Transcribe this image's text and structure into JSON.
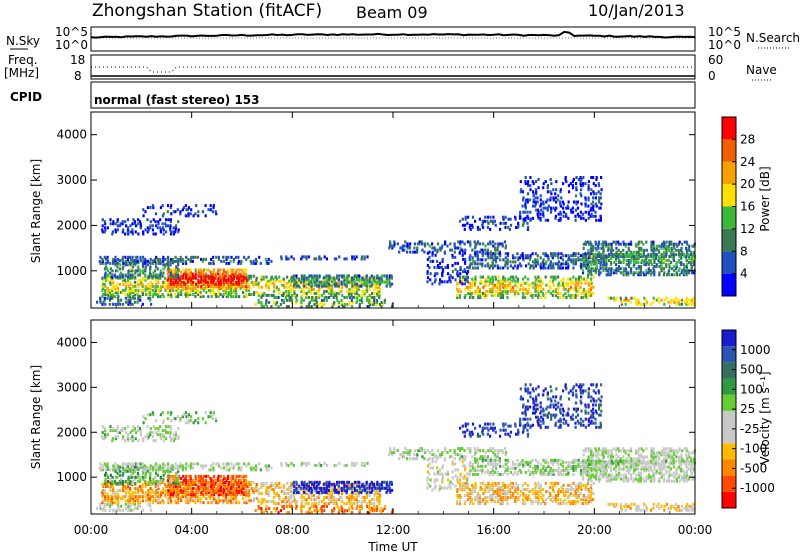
{
  "header": {
    "station": "Zhongshan Station (fitACF)",
    "beam": "Beam 09",
    "date": "10/Jan/2013",
    "cpid_label": "CPID",
    "cpid_text": "normal (fast stereo) 153"
  },
  "top_panels": {
    "noise": {
      "left_label": "N.Sky",
      "right_label": "N.Search",
      "ticks_left": [
        "10^5",
        "10^0"
      ],
      "ticks_right": [
        "10^5",
        "10^0"
      ]
    },
    "freq": {
      "left_label_1": "Freq.",
      "left_label_2": "[MHz]",
      "ticks_left": [
        "18",
        "8"
      ],
      "right_label": "Nave",
      "ticks_right": [
        "60",
        "0"
      ]
    }
  },
  "colors": {
    "power_scale": [
      "#0000ff",
      "#2050c0",
      "#3a7a50",
      "#3cb83c",
      "#ffe000",
      "#f8a000",
      "#f06000",
      "#ff0000"
    ],
    "velocity_scale": [
      "#ff0000",
      "#ff4a00",
      "#ff8800",
      "#ffbb00",
      "#c8c8c8",
      "#c8c8c8",
      "#66cc33",
      "#2f9a40",
      "#356f60",
      "#2a55b0",
      "#1a1ad0"
    ]
  },
  "chart_data": [
    {
      "type": "heatmap",
      "name": "power",
      "xlabel": "",
      "ylabel": "Slant Range [km]",
      "x_ticks": [
        "00:00",
        "04:00",
        "08:00",
        "12:00",
        "16:00",
        "20:00",
        "00:00"
      ],
      "y_ticks": [
        "1000",
        "2000",
        "3000",
        "4000"
      ],
      "ylim": [
        180,
        4500
      ],
      "xlim_hours": [
        0,
        24
      ],
      "colorbar": {
        "label": "Power [dB]",
        "ticks": [
          "4",
          "8",
          "12",
          "16",
          "20",
          "24",
          "28"
        ]
      }
    },
    {
      "type": "heatmap",
      "name": "velocity",
      "xlabel": "Time UT",
      "ylabel": "Slant Range [km]",
      "x_ticks": [
        "00:00",
        "04:00",
        "08:00",
        "12:00",
        "16:00",
        "20:00",
        "00:00"
      ],
      "y_ticks": [
        "1000",
        "2000",
        "3000",
        "4000"
      ],
      "ylim": [
        180,
        4500
      ],
      "xlim_hours": [
        0,
        24
      ],
      "colorbar": {
        "label": "Velocity [m s⁻¹]",
        "ticks": [
          "1000",
          "500",
          "100",
          "25",
          "-25",
          "-100",
          "-500",
          "-1000"
        ]
      }
    }
  ]
}
